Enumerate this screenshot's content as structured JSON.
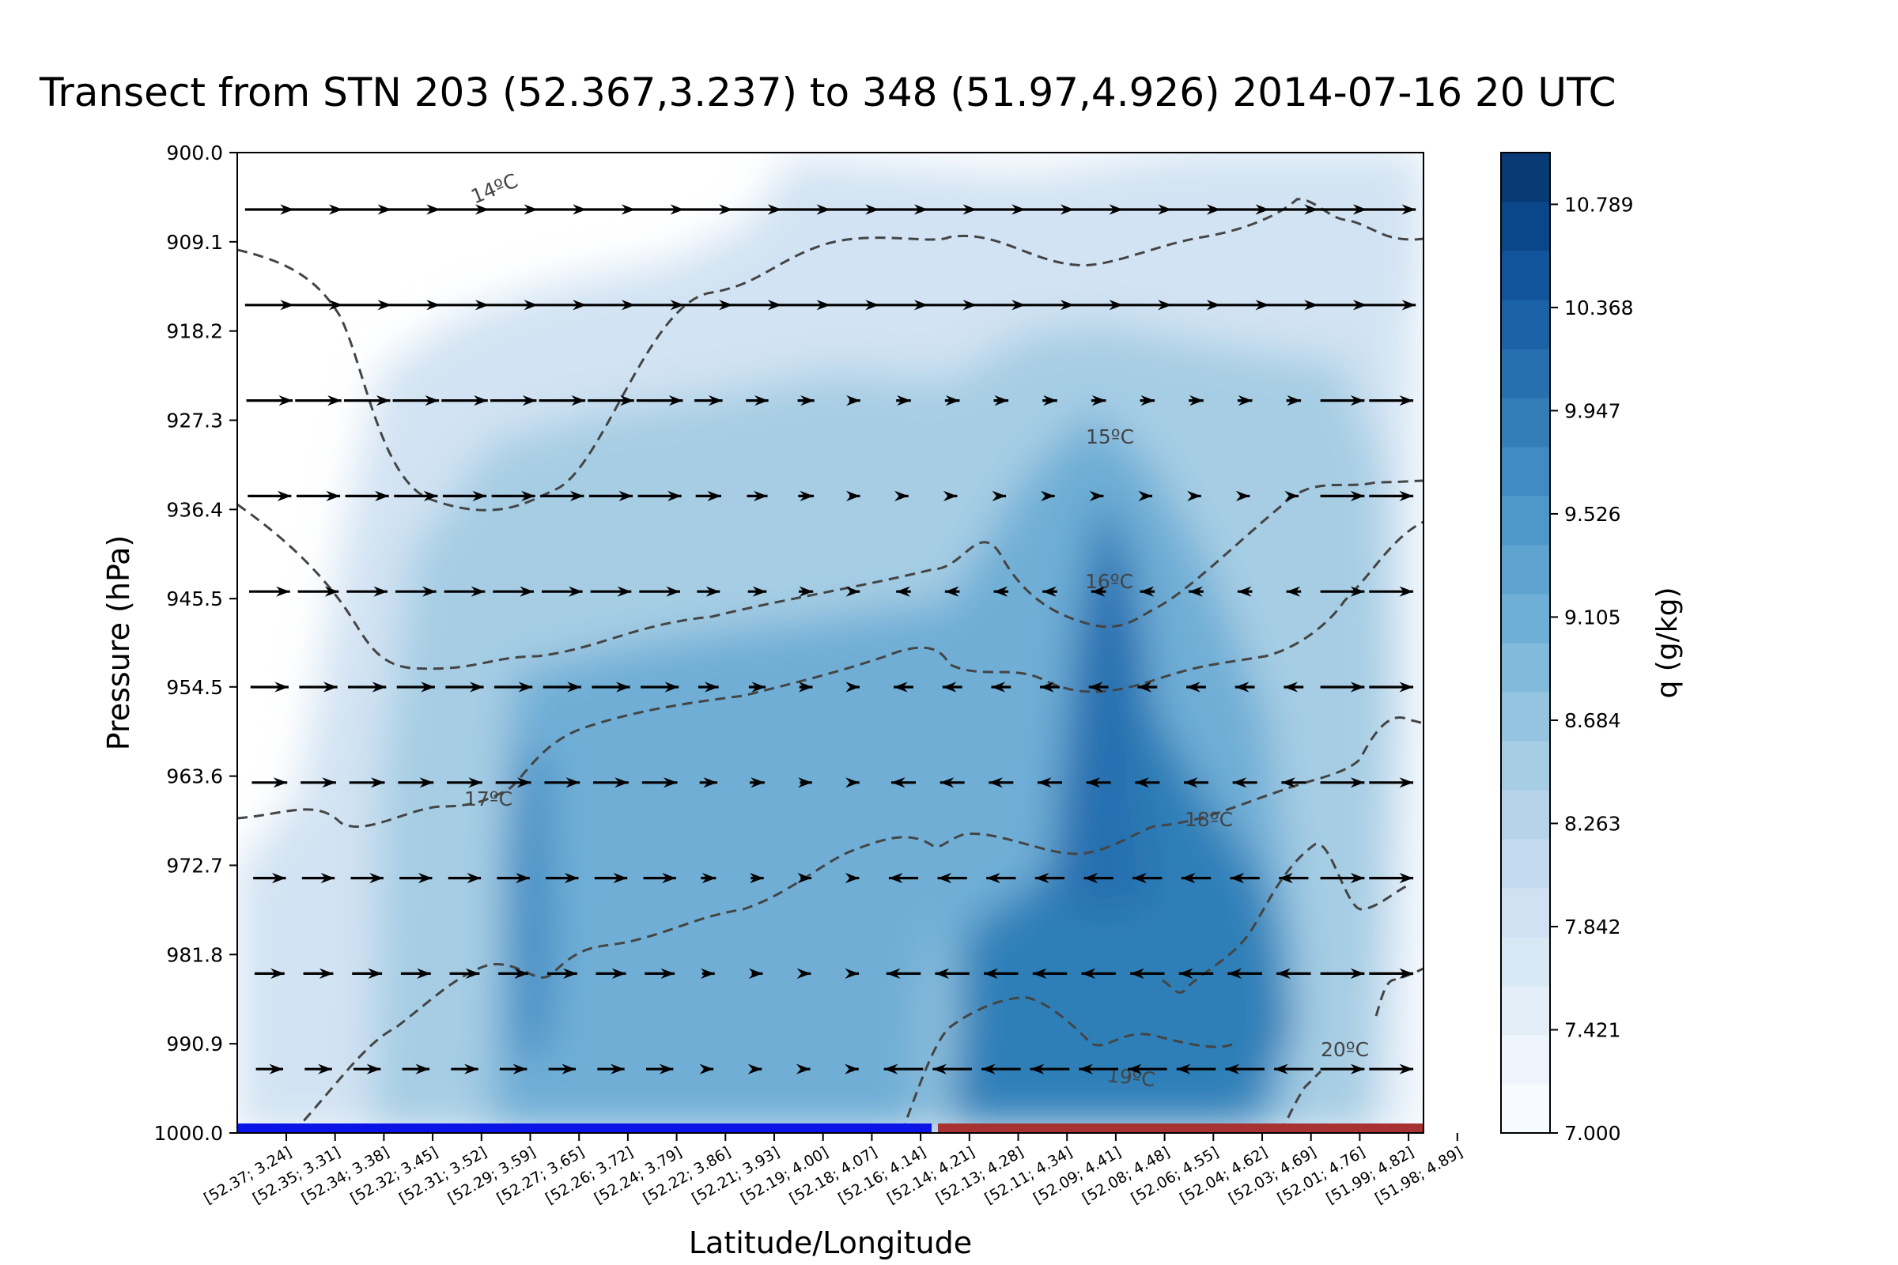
{
  "chart_data": {
    "type": "heatmap",
    "title": "Transect from STN 203 (52.367,3.237) to 348 (51.97,4.926) 2014-07-16 20 UTC",
    "xlabel": "Latitude/Longitude",
    "ylabel": "Pressure (hPa)",
    "y_ticks": [
      "900.0",
      "909.1",
      "918.2",
      "927.3",
      "936.4",
      "945.5",
      "954.5",
      "963.6",
      "972.7",
      "981.8",
      "990.9",
      "1000.0"
    ],
    "ylim": [
      1000.0,
      900.0
    ],
    "x_ticks": [
      "[52.37; 3.24]",
      "[52.35; 3.31]",
      "[52.34; 3.38]",
      "[52.32; 3.45]",
      "[52.31; 3.52]",
      "[52.29; 3.59]",
      "[52.27; 3.65]",
      "[52.26; 3.72]",
      "[52.24; 3.79]",
      "[52.22; 3.86]",
      "[52.21; 3.93]",
      "[52.19; 4.00]",
      "[52.18; 4.07]",
      "[52.16; 4.14]",
      "[52.14; 4.21]",
      "[52.13; 4.28]",
      "[52.11; 4.34]",
      "[52.09; 4.41]",
      "[52.08; 4.48]",
      "[52.06; 4.55]",
      "[52.04; 4.62]",
      "[52.03; 4.69]",
      "[52.01; 4.76]",
      "[51.99; 4.82]",
      "[51.98; 4.89]"
    ],
    "colorbar": {
      "label": "q (g/kg)",
      "tick_labels": [
        "10.789",
        "10.368",
        "9.947",
        "9.526",
        "9.105",
        "8.684",
        "8.263",
        "7.842",
        "7.421",
        "7.000"
      ],
      "range": [
        7.0,
        11.0
      ],
      "colors": [
        "#f7fbff",
        "#eef5fc",
        "#e3eef9",
        "#d9e8f5",
        "#cfe1f2",
        "#c4daee",
        "#b5d4e9",
        "#a6cde4",
        "#94c4df",
        "#82badb",
        "#6faed6",
        "#5fa3d0",
        "#4e97c9",
        "#3f8bc2",
        "#337eb9",
        "#2770b0",
        "#1c62a6",
        "#12549b",
        "#0a468a",
        "#083a76"
      ]
    },
    "isotherm_labels": [
      "14ºC",
      "15ºC",
      "16ºC",
      "17ºC",
      "18ºC",
      "19ºC",
      "20ºC"
    ],
    "surface_bar_colors": [
      "#0a14e6",
      "#a83232"
    ],
    "wind_arrow_color": "#000000",
    "isotherm_color": "#444444"
  }
}
